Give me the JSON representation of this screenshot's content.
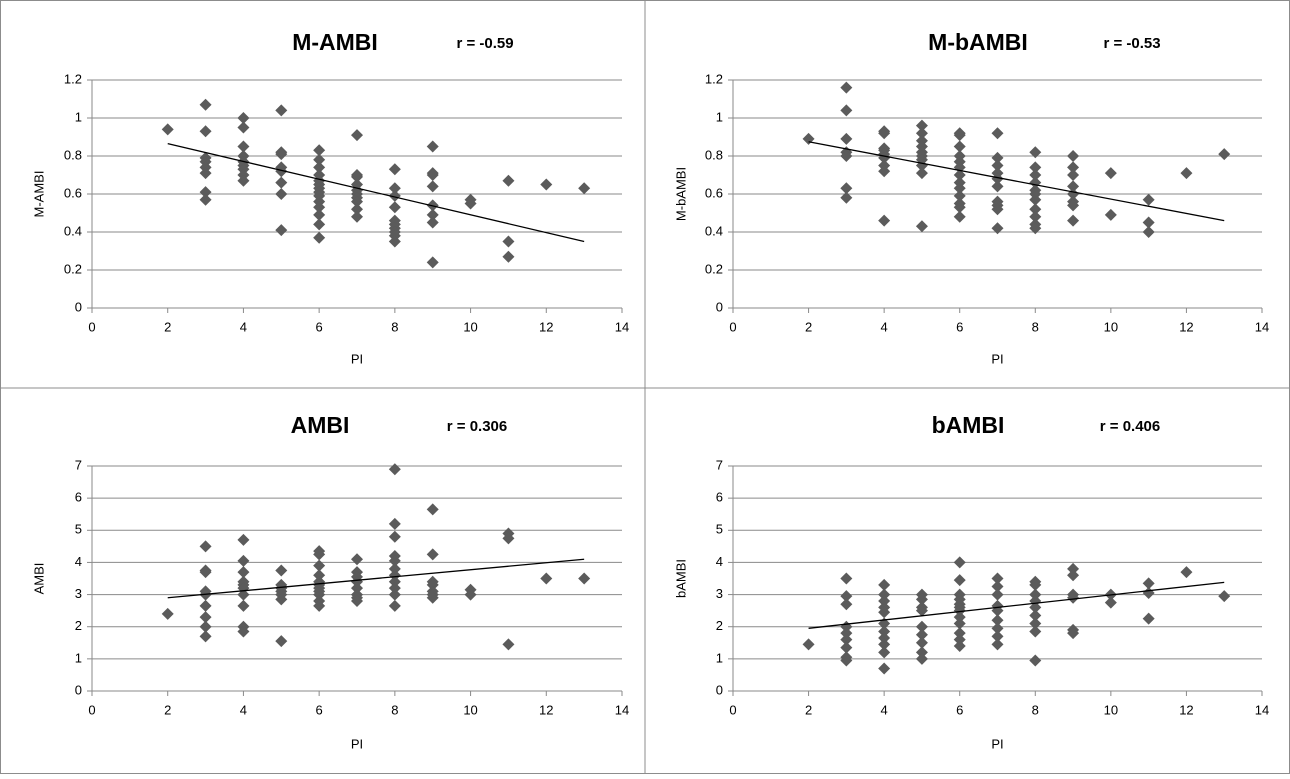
{
  "chart_data": [
    {
      "type": "scatter",
      "title": "M-AMBI",
      "annotation": "r = -0.59",
      "x_label": "PI",
      "y_label": "M-AMBI",
      "color": "#5b5b5b",
      "x": [
        2,
        3,
        3,
        3,
        3,
        3,
        3,
        3,
        3,
        4,
        4,
        4,
        4,
        4,
        4,
        4,
        4,
        4,
        5,
        5,
        5,
        5,
        5,
        5,
        5,
        5,
        6,
        6,
        6,
        6,
        6,
        6,
        6,
        6,
        6,
        6,
        6,
        6,
        6,
        6,
        7,
        7,
        7,
        7,
        7,
        7,
        7,
        7,
        7,
        7,
        8,
        8,
        8,
        8,
        8,
        8,
        8,
        8,
        8,
        8,
        9,
        9,
        9,
        9,
        9,
        9,
        9,
        9,
        10,
        10,
        11,
        11,
        11,
        12,
        13
      ],
      "y": [
        0.94,
        1.07,
        0.93,
        0.79,
        0.77,
        0.74,
        0.71,
        0.61,
        0.57,
        1.0,
        0.95,
        0.85,
        0.8,
        0.77,
        0.75,
        0.73,
        0.7,
        0.67,
        1.04,
        0.82,
        0.81,
        0.74,
        0.72,
        0.66,
        0.6,
        0.41,
        0.83,
        0.78,
        0.74,
        0.7,
        0.67,
        0.65,
        0.63,
        0.61,
        0.59,
        0.56,
        0.53,
        0.49,
        0.44,
        0.37,
        0.91,
        0.7,
        0.69,
        0.65,
        0.62,
        0.6,
        0.58,
        0.56,
        0.52,
        0.48,
        0.73,
        0.63,
        0.59,
        0.53,
        0.46,
        0.44,
        0.42,
        0.4,
        0.38,
        0.35,
        0.85,
        0.71,
        0.7,
        0.64,
        0.54,
        0.49,
        0.45,
        0.24,
        0.57,
        0.55,
        0.67,
        0.35,
        0.27,
        0.65,
        0.63
      ],
      "trendline": {
        "x": [
          2,
          13
        ],
        "y": [
          0.865,
          0.35
        ],
        "color": "#000000"
      },
      "xlim": [
        0,
        14
      ],
      "xticks": [
        0,
        2,
        4,
        6,
        8,
        10,
        12,
        14
      ],
      "ylim": [
        0,
        1.2
      ],
      "yticks": [
        0,
        0.2,
        0.4,
        0.6,
        0.8,
        1,
        1.2
      ],
      "grid": true
    },
    {
      "type": "scatter",
      "title": "M-bAMBI",
      "annotation": "r = -0.53",
      "x_label": "PI",
      "y_label": "M-bAMBI",
      "color": "#5b5b5b",
      "x": [
        2,
        3,
        3,
        3,
        3,
        3,
        3,
        3,
        4,
        4,
        4,
        4,
        4,
        4,
        4,
        4,
        4,
        5,
        5,
        5,
        5,
        5,
        5,
        5,
        5,
        5,
        5,
        6,
        6,
        6,
        6,
        6,
        6,
        6,
        6,
        6,
        6,
        6,
        6,
        6,
        7,
        7,
        7,
        7,
        7,
        7,
        7,
        7,
        7,
        7,
        8,
        8,
        8,
        8,
        8,
        8,
        8,
        8,
        8,
        8,
        8,
        9,
        9,
        9,
        9,
        9,
        9,
        9,
        9,
        10,
        10,
        11,
        11,
        11,
        12,
        13
      ],
      "y": [
        0.89,
        1.16,
        1.04,
        0.89,
        0.82,
        0.8,
        0.63,
        0.58,
        0.93,
        0.92,
        0.84,
        0.83,
        0.81,
        0.79,
        0.75,
        0.72,
        0.46,
        0.96,
        0.92,
        0.88,
        0.85,
        0.82,
        0.8,
        0.78,
        0.75,
        0.71,
        0.43,
        0.92,
        0.91,
        0.85,
        0.8,
        0.77,
        0.74,
        0.7,
        0.66,
        0.63,
        0.59,
        0.55,
        0.53,
        0.48,
        0.92,
        0.79,
        0.75,
        0.71,
        0.68,
        0.64,
        0.56,
        0.54,
        0.52,
        0.42,
        0.82,
        0.74,
        0.7,
        0.66,
        0.62,
        0.6,
        0.57,
        0.52,
        0.48,
        0.44,
        0.42,
        0.8,
        0.74,
        0.7,
        0.64,
        0.6,
        0.56,
        0.54,
        0.46,
        0.71,
        0.49,
        0.57,
        0.45,
        0.4,
        0.71,
        0.81
      ],
      "trendline": {
        "x": [
          2,
          13
        ],
        "y": [
          0.875,
          0.46
        ],
        "color": "#000000"
      },
      "xlim": [
        0,
        14
      ],
      "xticks": [
        0,
        2,
        4,
        6,
        8,
        10,
        12,
        14
      ],
      "ylim": [
        0,
        1.2
      ],
      "yticks": [
        0,
        0.2,
        0.4,
        0.6,
        0.8,
        1,
        1.2
      ],
      "grid": true
    },
    {
      "type": "scatter",
      "title": "AMBI",
      "annotation": "r = 0.306",
      "x_label": "PI",
      "y_label": "AMBI",
      "color": "#5b5b5b",
      "x": [
        2,
        3,
        3,
        3,
        3,
        3,
        3,
        3,
        3,
        3,
        4,
        4,
        4,
        4,
        4,
        4,
        4,
        4,
        4,
        4,
        5,
        5,
        5,
        5,
        5,
        5,
        5,
        6,
        6,
        6,
        6,
        6,
        6,
        6,
        6,
        6,
        6,
        6,
        7,
        7,
        7,
        7,
        7,
        7,
        7,
        7,
        8,
        8,
        8,
        8,
        8,
        8,
        8,
        8,
        8,
        8,
        8,
        9,
        9,
        9,
        9,
        9,
        9,
        9,
        10,
        10,
        11,
        11,
        11,
        12,
        13
      ],
      "y": [
        2.4,
        4.5,
        3.75,
        3.7,
        3.1,
        3.0,
        2.65,
        2.3,
        2.0,
        1.7,
        4.7,
        4.05,
        3.7,
        3.4,
        3.3,
        3.2,
        3.0,
        2.65,
        2.0,
        1.85,
        3.75,
        3.3,
        3.2,
        3.1,
        3.0,
        2.85,
        1.55,
        4.35,
        4.25,
        3.9,
        3.6,
        3.4,
        3.3,
        3.2,
        3.1,
        3.0,
        2.8,
        2.65,
        4.1,
        3.7,
        3.55,
        3.4,
        3.2,
        3.0,
        2.9,
        2.8,
        6.9,
        5.2,
        4.8,
        4.2,
        4.05,
        3.8,
        3.6,
        3.4,
        3.2,
        3.0,
        2.65,
        5.65,
        4.25,
        3.4,
        3.3,
        3.1,
        3.0,
        2.9,
        3.15,
        3.0,
        4.9,
        4.75,
        1.45,
        3.5,
        3.5
      ],
      "trendline": {
        "x": [
          2,
          13
        ],
        "y": [
          2.9,
          4.1
        ],
        "color": "#000000"
      },
      "xlim": [
        0,
        14
      ],
      "xticks": [
        0,
        2,
        4,
        6,
        8,
        10,
        12,
        14
      ],
      "ylim": [
        0,
        7
      ],
      "yticks": [
        0,
        1,
        2,
        3,
        4,
        5,
        6,
        7
      ],
      "grid": true
    },
    {
      "type": "scatter",
      "title": "bAMBI",
      "annotation": "r = 0.406",
      "x_label": "PI",
      "y_label": "bAMBI",
      "color": "#5b5b5b",
      "x": [
        2,
        3,
        3,
        3,
        3,
        3,
        3,
        3,
        3,
        3,
        4,
        4,
        4,
        4,
        4,
        4,
        4,
        4,
        4,
        4,
        4,
        5,
        5,
        5,
        5,
        5,
        5,
        5,
        5,
        5,
        6,
        6,
        6,
        6,
        6,
        6,
        6,
        6,
        6,
        6,
        6,
        6,
        7,
        7,
        7,
        7,
        7,
        7,
        7,
        7,
        7,
        8,
        8,
        8,
        8,
        8,
        8,
        8,
        8,
        8,
        9,
        9,
        9,
        9,
        9,
        9,
        10,
        10,
        11,
        11,
        11,
        12,
        13
      ],
      "y": [
        1.45,
        3.5,
        2.95,
        2.7,
        2.0,
        1.8,
        1.6,
        1.35,
        1.05,
        0.95,
        3.3,
        3.0,
        2.8,
        2.6,
        2.45,
        2.1,
        1.85,
        1.65,
        1.45,
        1.2,
        0.7,
        3.0,
        2.85,
        2.6,
        2.5,
        2.0,
        1.75,
        1.5,
        1.2,
        1.0,
        4.0,
        3.45,
        3.0,
        2.85,
        2.7,
        2.6,
        2.5,
        2.3,
        2.1,
        1.8,
        1.6,
        1.4,
        3.5,
        3.25,
        3.0,
        2.65,
        2.5,
        2.2,
        1.95,
        1.7,
        1.45,
        3.4,
        3.3,
        3.0,
        2.8,
        2.6,
        2.35,
        2.1,
        1.85,
        0.95,
        3.8,
        3.6,
        3.0,
        2.9,
        1.9,
        1.8,
        3.0,
        2.75,
        3.35,
        3.05,
        2.25,
        3.7,
        2.95
      ],
      "trendline": {
        "x": [
          2,
          13
        ],
        "y": [
          1.95,
          3.38
        ],
        "color": "#000000"
      },
      "xlim": [
        0,
        14
      ],
      "xticks": [
        0,
        2,
        4,
        6,
        8,
        10,
        12,
        14
      ],
      "ylim": [
        0,
        7
      ],
      "yticks": [
        0,
        1,
        2,
        3,
        4,
        5,
        6,
        7
      ],
      "grid": true
    }
  ]
}
